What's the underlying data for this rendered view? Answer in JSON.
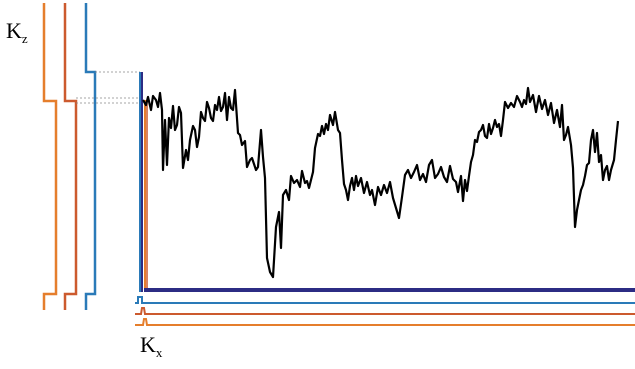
{
  "labels": {
    "kz_main": "K",
    "kz_sub": "z",
    "kx_main": "K",
    "kx_sub": "x"
  },
  "colors": {
    "orange": "#E57E2C",
    "rust": "#CC5A2E",
    "blue": "#2A7AB8",
    "navy": "#2C2C84",
    "trace": "#000000",
    "dotted": "#888888"
  }
}
